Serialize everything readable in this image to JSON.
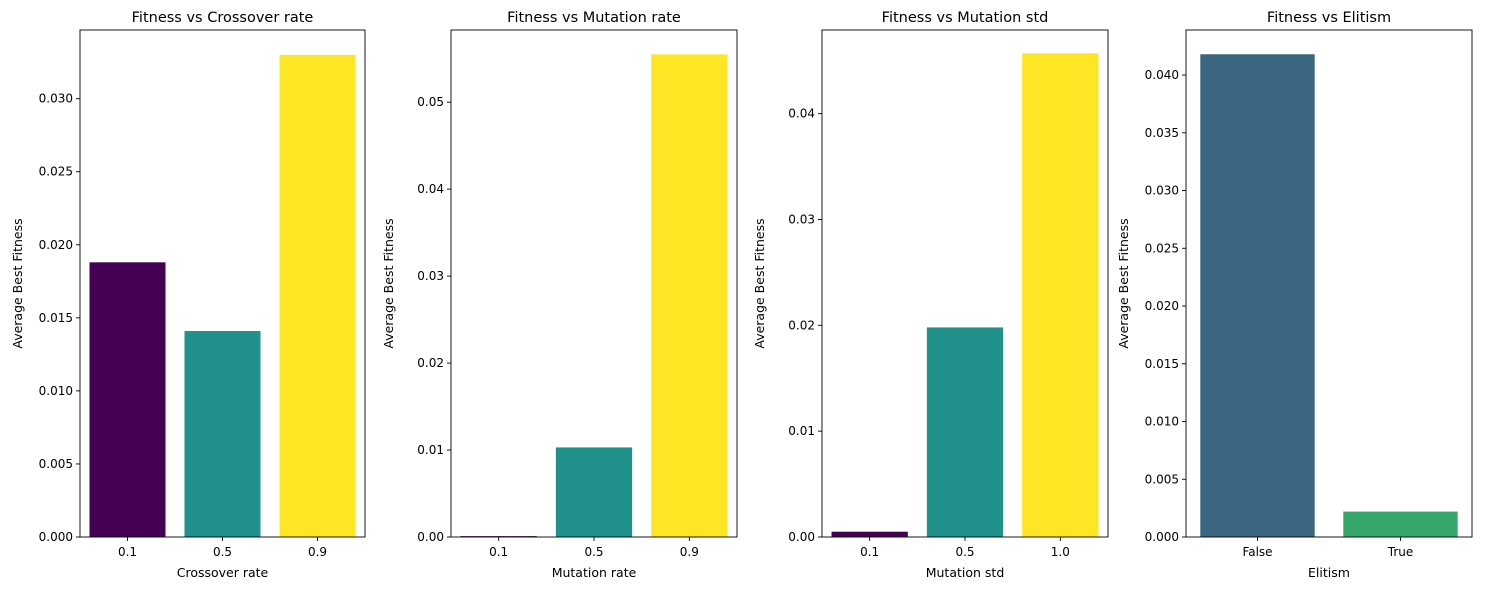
{
  "chart_data": [
    {
      "type": "bar",
      "title": "Fitness vs Crossover rate",
      "xlabel": "Crossover rate",
      "ylabel": "Average Best Fitness",
      "categories": [
        "0.1",
        "0.5",
        "0.9"
      ],
      "values": [
        0.0188,
        0.0141,
        0.033
      ],
      "colors": [
        "#440154",
        "#21918c",
        "#fde725"
      ],
      "ylim": [
        0,
        0.0347
      ],
      "yticks": [
        0.0,
        0.005,
        0.01,
        0.015,
        0.02,
        0.025,
        0.03
      ],
      "ytick_labels": [
        "0.000",
        "0.005",
        "0.010",
        "0.015",
        "0.020",
        "0.025",
        "0.030"
      ]
    },
    {
      "type": "bar",
      "title": "Fitness vs Mutation rate",
      "xlabel": "Mutation rate",
      "ylabel": "Average Best Fitness",
      "categories": [
        "0.1",
        "0.5",
        "0.9"
      ],
      "values": [
        0.0001,
        0.0103,
        0.0555
      ],
      "colors": [
        "#440154",
        "#21918c",
        "#fde725"
      ],
      "ylim": [
        0,
        0.0583
      ],
      "yticks": [
        0.0,
        0.01,
        0.02,
        0.03,
        0.04,
        0.05
      ],
      "ytick_labels": [
        "0.00",
        "0.01",
        "0.02",
        "0.03",
        "0.04",
        "0.05"
      ]
    },
    {
      "type": "bar",
      "title": "Fitness vs Mutation std",
      "xlabel": "Mutation std",
      "ylabel": "Average Best Fitness",
      "categories": [
        "0.1",
        "0.5",
        "1.0"
      ],
      "values": [
        0.0005,
        0.0198,
        0.0457
      ],
      "colors": [
        "#440154",
        "#21918c",
        "#fde725"
      ],
      "ylim": [
        0,
        0.0479
      ],
      "yticks": [
        0.0,
        0.01,
        0.02,
        0.03,
        0.04
      ],
      "ytick_labels": [
        "0.00",
        "0.01",
        "0.02",
        "0.03",
        "0.04"
      ]
    },
    {
      "type": "bar",
      "title": "Fitness vs Elitism",
      "xlabel": "Elitism",
      "ylabel": "Average Best Fitness",
      "categories": [
        "False",
        "True"
      ],
      "values": [
        0.0418,
        0.0022
      ],
      "colors": [
        "#3b6682",
        "#36a86c"
      ],
      "ylim": [
        0,
        0.0439
      ],
      "yticks": [
        0.0,
        0.005,
        0.01,
        0.015,
        0.02,
        0.025,
        0.03,
        0.035,
        0.04
      ],
      "ytick_labels": [
        "0.000",
        "0.005",
        "0.010",
        "0.015",
        "0.020",
        "0.025",
        "0.030",
        "0.035",
        "0.040"
      ]
    }
  ]
}
